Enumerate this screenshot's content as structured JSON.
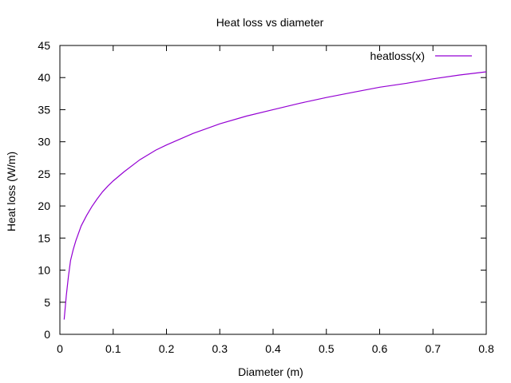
{
  "chart_data": {
    "type": "line",
    "title": "Heat loss vs diameter",
    "xlabel": "Diameter (m)",
    "ylabel": "Heat loss (W/m)",
    "xlim": [
      0,
      0.8
    ],
    "ylim": [
      0,
      45
    ],
    "xticks": [
      0,
      0.1,
      0.2,
      0.3,
      0.4,
      0.5,
      0.6,
      0.7,
      0.8
    ],
    "yticks": [
      0,
      5,
      10,
      15,
      20,
      25,
      30,
      35,
      40,
      45
    ],
    "xtick_labels": [
      "0",
      "0.1",
      "0.2",
      "0.3",
      "0.4",
      "0.5",
      "0.6",
      "0.7",
      "0.8"
    ],
    "ytick_labels": [
      "0",
      "5",
      "10",
      "15",
      "20",
      "25",
      "30",
      "35",
      "40",
      "45"
    ],
    "grid": false,
    "legend": {
      "position": "top-right",
      "entries": [
        "heatloss(x)"
      ]
    },
    "series": [
      {
        "name": "heatloss(x)",
        "color": "#9400d3",
        "x": [
          0.008,
          0.012,
          0.016,
          0.02,
          0.025,
          0.03,
          0.04,
          0.05,
          0.06,
          0.07,
          0.08,
          0.09,
          0.1,
          0.12,
          0.15,
          0.18,
          0.2,
          0.25,
          0.3,
          0.35,
          0.4,
          0.45,
          0.5,
          0.55,
          0.6,
          0.65,
          0.7,
          0.75,
          0.8
        ],
        "y": [
          2.3,
          6.0,
          9.0,
          11.5,
          13.2,
          14.6,
          16.9,
          18.5,
          19.9,
          21.1,
          22.2,
          23.1,
          23.9,
          25.3,
          27.2,
          28.7,
          29.5,
          31.3,
          32.8,
          34.0,
          35.0,
          36.0,
          36.9,
          37.7,
          38.5,
          39.1,
          39.8,
          40.4,
          40.9
        ]
      }
    ]
  }
}
